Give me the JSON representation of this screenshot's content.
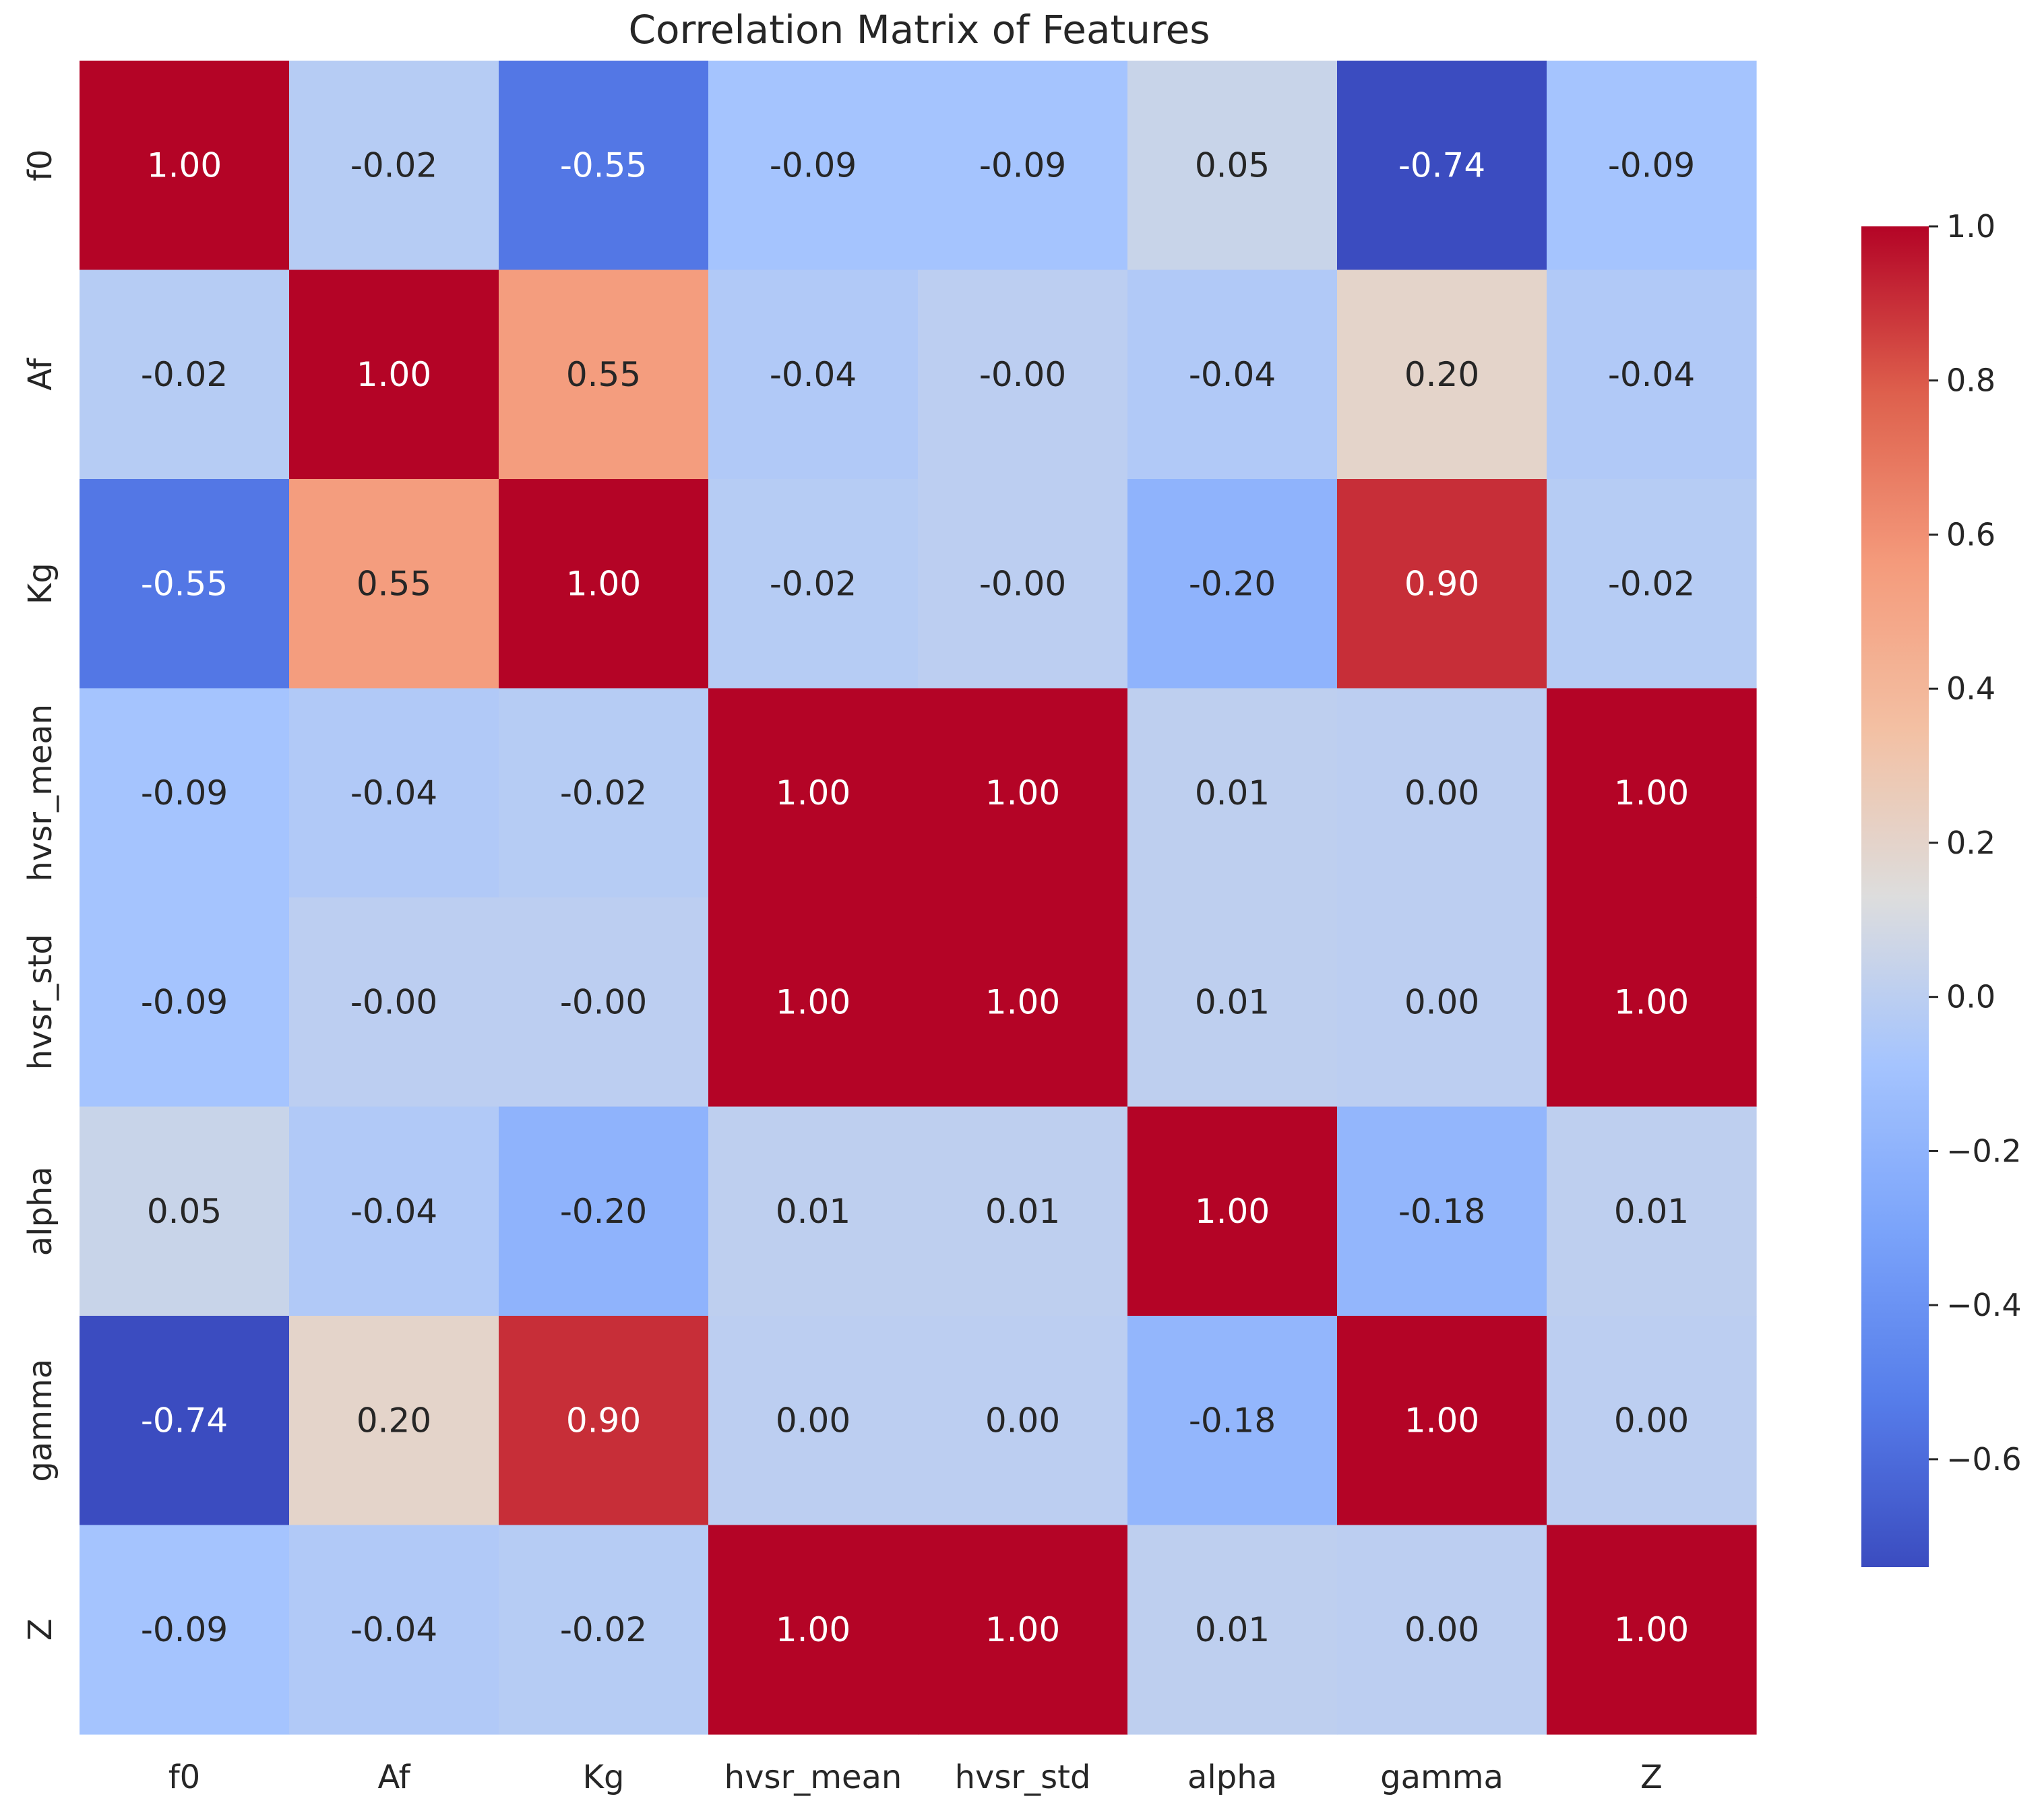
{
  "chart_data": {
    "type": "heatmap",
    "title": "Correlation Matrix of Features",
    "xlabel": "",
    "ylabel": "",
    "labels": [
      "f0",
      "Af",
      "Kg",
      "hvsr_mean",
      "hvsr_std",
      "alpha",
      "gamma",
      "Z"
    ],
    "matrix": [
      [
        1.0,
        -0.02,
        -0.55,
        -0.09,
        -0.09,
        0.05,
        -0.74,
        -0.09
      ],
      [
        -0.02,
        1.0,
        0.55,
        -0.04,
        -0.0,
        -0.04,
        0.2,
        -0.04
      ],
      [
        -0.55,
        0.55,
        1.0,
        -0.02,
        -0.0,
        -0.2,
        0.9,
        -0.02
      ],
      [
        -0.09,
        -0.04,
        -0.02,
        1.0,
        1.0,
        0.01,
        0.0,
        1.0
      ],
      [
        -0.09,
        -0.0,
        -0.0,
        1.0,
        1.0,
        0.01,
        0.0,
        1.0
      ],
      [
        0.05,
        -0.04,
        -0.2,
        0.01,
        0.01,
        1.0,
        -0.18,
        0.01
      ],
      [
        -0.74,
        0.2,
        0.9,
        0.0,
        0.0,
        -0.18,
        1.0,
        0.0
      ],
      [
        -0.09,
        -0.04,
        -0.02,
        1.0,
        1.0,
        0.01,
        0.0,
        1.0
      ]
    ],
    "cell_text": [
      [
        "1.00",
        "-0.02",
        "-0.55",
        "-0.09",
        "-0.09",
        "0.05",
        "-0.74",
        "-0.09"
      ],
      [
        "-0.02",
        "1.00",
        "0.55",
        "-0.04",
        "-0.00",
        "-0.04",
        "0.20",
        "-0.04"
      ],
      [
        "-0.55",
        "0.55",
        "1.00",
        "-0.02",
        "-0.00",
        "-0.20",
        "0.90",
        "-0.02"
      ],
      [
        "-0.09",
        "-0.04",
        "-0.02",
        "1.00",
        "1.00",
        "0.01",
        "0.00",
        "1.00"
      ],
      [
        "-0.09",
        "-0.00",
        "-0.00",
        "1.00",
        "1.00",
        "0.01",
        "0.00",
        "1.00"
      ],
      [
        "0.05",
        "-0.04",
        "-0.20",
        "0.01",
        "0.01",
        "1.00",
        "-0.18",
        "0.01"
      ],
      [
        "-0.74",
        "0.20",
        "0.90",
        "0.00",
        "0.00",
        "-0.18",
        "1.00",
        "0.00"
      ],
      [
        "-0.09",
        "-0.04",
        "-0.02",
        "1.00",
        "1.00",
        "0.01",
        "0.00",
        "1.00"
      ]
    ],
    "colormap": "coolwarm",
    "vmin": -0.74,
    "vmax": 1.0,
    "colorbar": {
      "ticks": [
        1.0,
        0.8,
        0.6,
        0.4,
        0.2,
        0.0,
        -0.2,
        -0.4,
        -0.6
      ],
      "tick_labels": [
        "1.0",
        "0.8",
        "0.6",
        "0.4",
        "0.2",
        "0.0",
        "−0.2",
        "−0.4",
        "−0.6"
      ],
      "placement": "right"
    },
    "grid": false
  }
}
